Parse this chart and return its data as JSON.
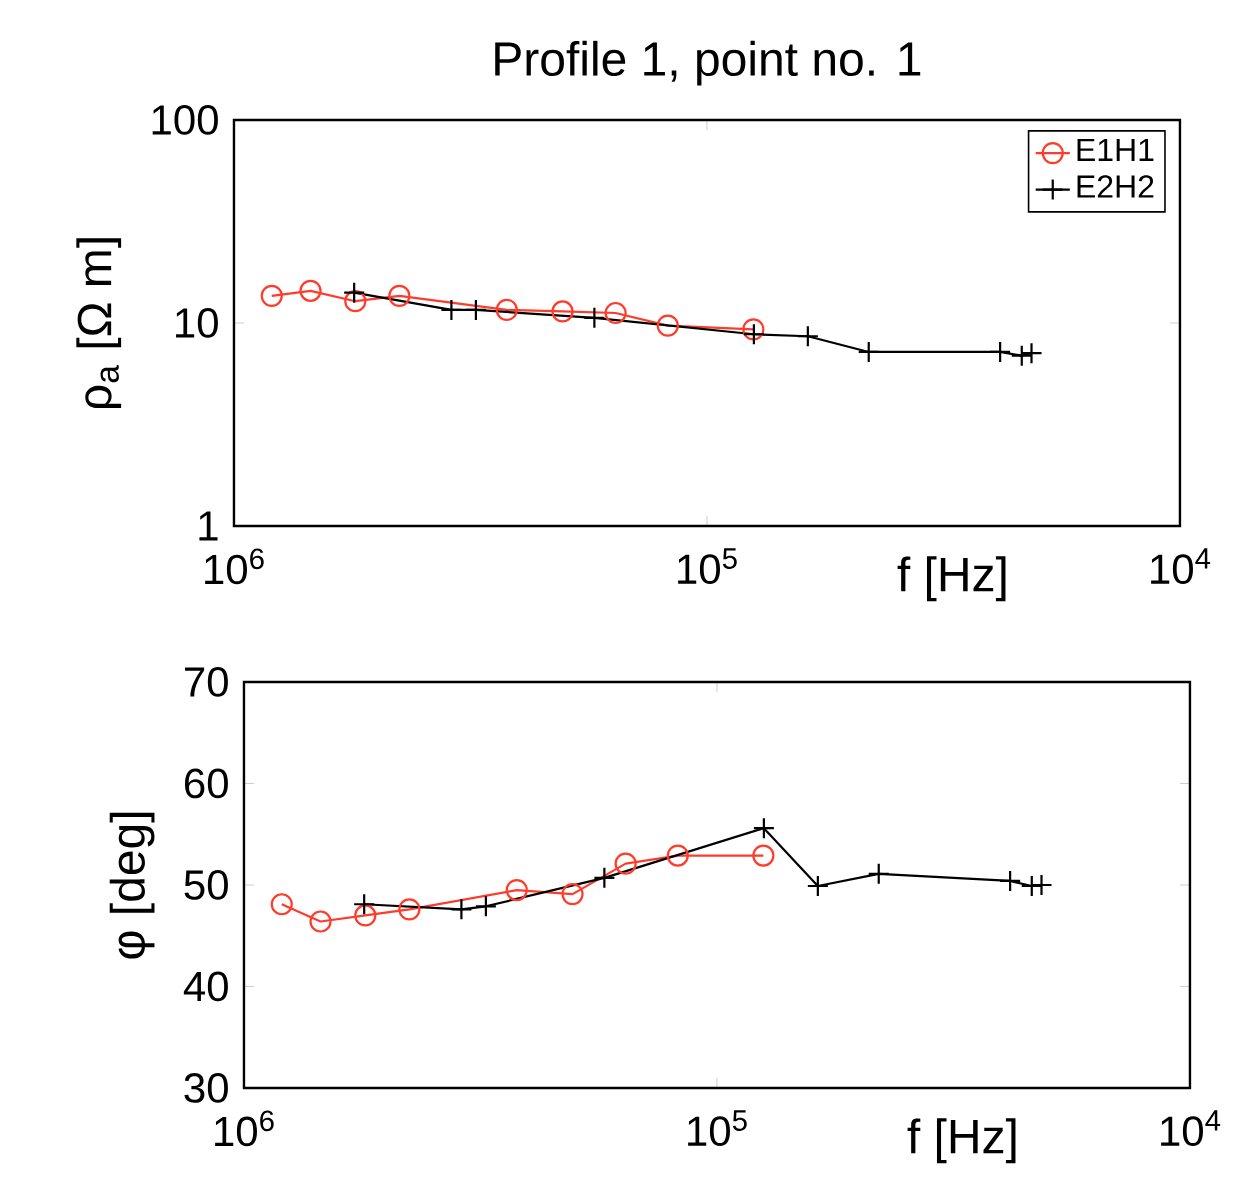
{
  "chart_data": [
    {
      "type": "line",
      "title": "Profile 1, point no. 1",
      "xlabel": "f [Hz]",
      "ylabel": "ρ$_{a}$ [Ω m]",
      "log": "xy",
      "xlim": [
        1000000,
        10000
      ],
      "xticks": [
        {
          "value": 1000000,
          "label": "10$^{6}$"
        },
        {
          "value": 100000,
          "label": "10$^{5}$"
        },
        {
          "value": 10000,
          "label": "10$^{4}$"
        }
      ],
      "ylim": [
        1,
        100
      ],
      "yticks": [
        1,
        10,
        100
      ],
      "legend": "top right",
      "series": [
        {
          "name": "E1H1",
          "color": "#ff3b2b",
          "marker": "circle",
          "x": [
            832000,
            689000,
            554000,
            447000,
            265000,
            202000,
            156000,
            121000,
            79800
          ],
          "values": [
            13.6,
            14.4,
            12.8,
            13.6,
            11.6,
            11.4,
            11.2,
            9.7,
            9.3
          ]
        },
        {
          "name": "E2H2",
          "color": "#000000",
          "marker": "cross",
          "x": [
            557000,
            347000,
            308000,
            173000,
            79600,
            61200,
            45500,
            24000,
            21600,
            20600
          ],
          "values": [
            14.1,
            11.6,
            11.6,
            10.6,
            8.8,
            8.6,
            7.2,
            7.2,
            6.9,
            7.1
          ]
        }
      ]
    },
    {
      "type": "line",
      "xlabel": "f [Hz]",
      "ylabel": "φ [deg]",
      "log": "x",
      "xlim": [
        1000000,
        10000
      ],
      "xticks": [
        {
          "value": 1000000,
          "label": "10$^{6}$"
        },
        {
          "value": 100000,
          "label": "10$^{5}$"
        },
        {
          "value": 10000,
          "label": "10$^{4}$"
        }
      ],
      "ylim": [
        30,
        70
      ],
      "yticks": [
        30,
        40,
        50,
        60,
        70
      ],
      "series": [
        {
          "color": "#ff3b2b",
          "marker": "circle",
          "x": [
            832000,
            689000,
            554000,
            447000,
            265000,
            202000,
            156000,
            121000,
            79800
          ],
          "values": [
            48.1,
            46.4,
            47.0,
            47.6,
            49.5,
            49.1,
            52.1,
            52.9,
            52.9
          ]
        },
        {
          "color": "#000000",
          "marker": "cross",
          "x": [
            557000,
            347000,
            308000,
            173000,
            79600,
            61200,
            45500,
            24000,
            21600,
            20600
          ],
          "values": [
            48.1,
            47.6,
            47.9,
            50.7,
            55.6,
            49.9,
            51.1,
            50.4,
            49.9,
            50.0
          ]
        }
      ]
    }
  ]
}
